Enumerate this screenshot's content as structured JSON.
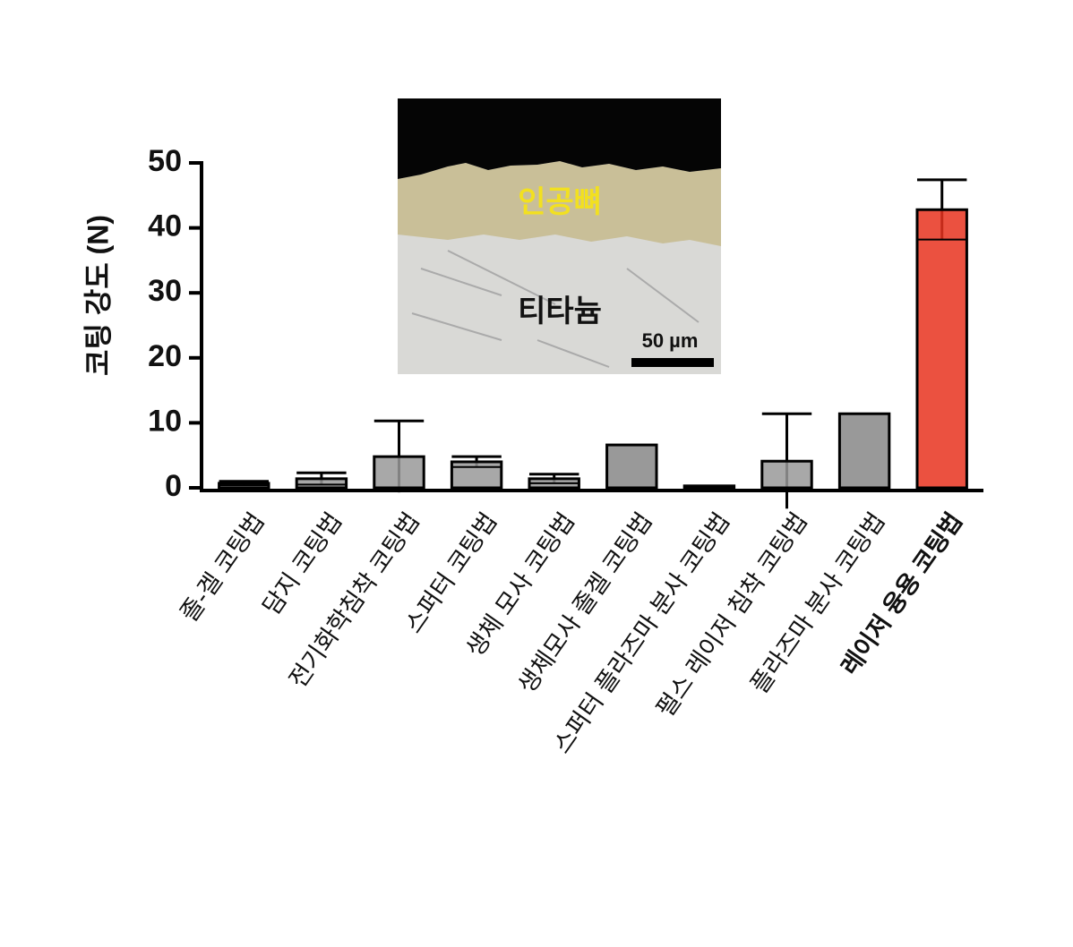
{
  "chart_data": {
    "type": "bar",
    "y_label": "코팅 강도 (N)",
    "categories": [
      "졸-겔 코팅법",
      "담지 코팅법",
      "전기화학침착 코팅법",
      "스퍼터 코팅법",
      "생체 모사 코팅법",
      "생체모사 졸겔 코팅법",
      "스퍼터 플라즈마 분사 코팅법",
      "펄스 레이저 침착 코팅법",
      "플라즈마 분사 코팅법",
      "레이저 융용 코팅법"
    ],
    "values": [
      0.7,
      1.4,
      4.8,
      4.0,
      1.4,
      6.6,
      0.3,
      4.1,
      11.4,
      42.8
    ],
    "errors": [
      0.3,
      0.9,
      5.5,
      0.8,
      0.7,
      0,
      0,
      7.3,
      0,
      4.6
    ],
    "colors": [
      "#999999",
      "#999999",
      "#999999",
      "#999999",
      "#999999",
      "#999999",
      "#999999",
      "#999999",
      "#999999",
      "#e8321e"
    ],
    "bold_labels": [
      false,
      false,
      false,
      false,
      false,
      false,
      false,
      false,
      false,
      true
    ],
    "ylim": [
      0,
      50
    ],
    "yticks": [
      0,
      10,
      20,
      30,
      40,
      50
    ],
    "inset": {
      "upper_label": "인공뼈",
      "lower_label": "티타늄",
      "scale_label": "50 µm"
    }
  }
}
